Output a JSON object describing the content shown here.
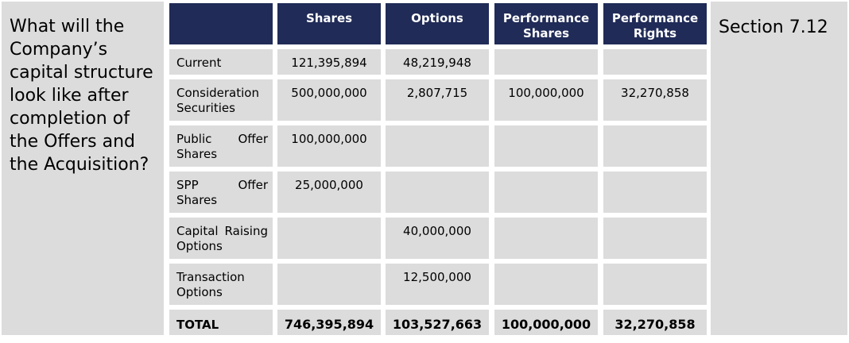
{
  "question": "What will the Company’s capital structure look like after completion of the Offers and the Acquisition?",
  "section": "Section 7.12",
  "table": {
    "headers": [
      "",
      "Shares",
      "Options",
      "Performance Shares",
      "Performance Rights"
    ],
    "rows": [
      {
        "label": "Current",
        "values": [
          "121,395,894",
          "48,219,948",
          "",
          ""
        ]
      },
      {
        "label": "Consideration Securities",
        "values": [
          "500,000,000",
          "2,807,715",
          "100,000,000",
          "32,270,858"
        ]
      },
      {
        "label": "Public Offer Shares",
        "values": [
          "100,000,000",
          "",
          "",
          ""
        ]
      },
      {
        "label": "SPP Offer Shares",
        "values": [
          "25,000,000",
          "",
          "",
          ""
        ]
      },
      {
        "label": "Capital Raising Options",
        "values": [
          "",
          "40,000,000",
          "",
          ""
        ]
      },
      {
        "label": "Transaction Options",
        "values": [
          "",
          "12,500,000",
          "",
          ""
        ]
      }
    ],
    "total": {
      "label": "TOTAL",
      "values": [
        "746,395,894",
        "103,527,663",
        "100,000,000",
        "32,270,858"
      ]
    }
  }
}
